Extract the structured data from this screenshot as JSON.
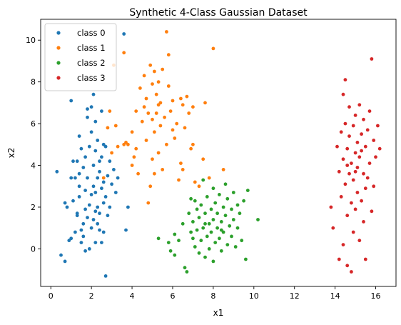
{
  "chart_data": {
    "type": "scatter",
    "title": "Synthetic 4-Class Gaussian Dataset",
    "xlabel": "x1",
    "ylabel": "x2",
    "xlim": [
      -0.5,
      17
    ],
    "ylim": [
      -1.8,
      11
    ],
    "xticks": [
      0,
      2,
      4,
      6,
      8,
      10,
      12,
      14,
      16
    ],
    "yticks": [
      0,
      2,
      4,
      6,
      8,
      10
    ],
    "grid": false,
    "legend_position": "top-left",
    "series": [
      {
        "name": "class 0",
        "color": "#1f77b4",
        "points": [
          [
            0.3,
            3.7
          ],
          [
            0.5,
            -0.3
          ],
          [
            0.7,
            -0.6
          ],
          [
            0.7,
            2.2
          ],
          [
            0.8,
            2.0
          ],
          [
            0.9,
            0.4
          ],
          [
            1.0,
            0.5
          ],
          [
            1.0,
            3.4
          ],
          [
            1.0,
            7.1
          ],
          [
            1.1,
            4.2
          ],
          [
            1.1,
            2.3
          ],
          [
            1.2,
            0.8
          ],
          [
            1.2,
            3.4
          ],
          [
            1.3,
            1.7
          ],
          [
            1.3,
            4.2
          ],
          [
            1.3,
            1.6
          ],
          [
            1.4,
            5.4
          ],
          [
            1.4,
            3.0
          ],
          [
            1.4,
            3.6
          ],
          [
            1.4,
            2.5
          ],
          [
            1.5,
            0.3
          ],
          [
            1.5,
            4.8
          ],
          [
            1.5,
            0.9
          ],
          [
            1.6,
            1.2
          ],
          [
            1.6,
            0.6
          ],
          [
            1.6,
            3.9
          ],
          [
            1.7,
            -0.1
          ],
          [
            1.7,
            2.8
          ],
          [
            1.7,
            1.9
          ],
          [
            1.7,
            4.4
          ],
          [
            1.8,
            6.3
          ],
          [
            1.8,
            6.7
          ],
          [
            1.8,
            1.5
          ],
          [
            1.8,
            3.4
          ],
          [
            1.9,
            2.1
          ],
          [
            1.9,
            0.0
          ],
          [
            1.9,
            4.9
          ],
          [
            2.0,
            6.8
          ],
          [
            2.0,
            2.6
          ],
          [
            2.0,
            1.0
          ],
          [
            2.0,
            5.6
          ],
          [
            2.1,
            7.4
          ],
          [
            2.1,
            3.0
          ],
          [
            2.1,
            4.0
          ],
          [
            2.1,
            1.4
          ],
          [
            2.2,
            2.7
          ],
          [
            2.2,
            0.3
          ],
          [
            2.2,
            6.1
          ],
          [
            2.2,
            4.7
          ],
          [
            2.3,
            2.0
          ],
          [
            2.3,
            1.2
          ],
          [
            2.3,
            3.4
          ],
          [
            2.3,
            5.2
          ],
          [
            2.4,
            0.9
          ],
          [
            2.4,
            4.2
          ],
          [
            2.4,
            1.7
          ],
          [
            2.4,
            3.7
          ],
          [
            2.5,
            6.6
          ],
          [
            2.5,
            2.9
          ],
          [
            2.5,
            4.4
          ],
          [
            2.5,
            0.3
          ],
          [
            2.6,
            2.2
          ],
          [
            2.6,
            5.0
          ],
          [
            2.6,
            0.8
          ],
          [
            2.6,
            3.2
          ],
          [
            2.7,
            -1.3
          ],
          [
            2.7,
            4.9
          ],
          [
            2.7,
            2.5
          ],
          [
            2.8,
            3.5
          ],
          [
            2.8,
            1.6
          ],
          [
            2.9,
            4.2
          ],
          [
            2.9,
            2.0
          ],
          [
            3.0,
            3.1
          ],
          [
            3.1,
            3.8
          ],
          [
            3.2,
            2.7
          ],
          [
            3.3,
            3.4
          ],
          [
            3.6,
            10.3
          ],
          [
            3.7,
            0.9
          ],
          [
            3.8,
            2.0
          ],
          [
            2.2,
            1.8
          ]
        ]
      },
      {
        "name": "class 1",
        "color": "#ff7f0e",
        "points": [
          [
            2.6,
            3.4
          ],
          [
            2.8,
            5.8
          ],
          [
            2.9,
            6.6
          ],
          [
            3.0,
            4.6
          ],
          [
            3.1,
            8.8
          ],
          [
            3.2,
            5.9
          ],
          [
            3.3,
            4.9
          ],
          [
            3.6,
            5.0
          ],
          [
            3.6,
            9.4
          ],
          [
            3.7,
            5.1
          ],
          [
            3.8,
            5.0
          ],
          [
            4.0,
            4.0
          ],
          [
            4.0,
            5.6
          ],
          [
            4.1,
            4.4
          ],
          [
            4.2,
            4.8
          ],
          [
            4.2,
            6.6
          ],
          [
            4.3,
            3.6
          ],
          [
            4.4,
            7.7
          ],
          [
            4.5,
            6.1
          ],
          [
            4.6,
            8.3
          ],
          [
            4.6,
            6.8
          ],
          [
            4.7,
            5.2
          ],
          [
            4.7,
            7.2
          ],
          [
            4.8,
            2.2
          ],
          [
            4.8,
            6.5
          ],
          [
            4.9,
            8.8
          ],
          [
            4.9,
            3.0
          ],
          [
            5.0,
            7.9
          ],
          [
            5.0,
            6.2
          ],
          [
            5.0,
            4.3
          ],
          [
            5.1,
            8.5
          ],
          [
            5.1,
            5.6
          ],
          [
            5.1,
            3.6
          ],
          [
            5.2,
            7.4
          ],
          [
            5.2,
            6.5
          ],
          [
            5.3,
            4.6
          ],
          [
            5.3,
            8.0
          ],
          [
            5.4,
            5.9
          ],
          [
            5.4,
            7.0
          ],
          [
            5.5,
            8.6
          ],
          [
            5.5,
            3.8
          ],
          [
            5.6,
            6.3
          ],
          [
            5.7,
            10.4
          ],
          [
            5.7,
            5.0
          ],
          [
            5.8,
            7.8
          ],
          [
            5.8,
            9.3
          ],
          [
            5.9,
            6.6
          ],
          [
            6.0,
            5.7
          ],
          [
            6.0,
            7.1
          ],
          [
            6.1,
            5.3
          ],
          [
            6.2,
            6.0
          ],
          [
            6.3,
            3.3
          ],
          [
            6.4,
            7.2
          ],
          [
            6.4,
            4.1
          ],
          [
            6.5,
            6.9
          ],
          [
            6.6,
            5.8
          ],
          [
            6.7,
            7.3
          ],
          [
            6.8,
            6.5
          ],
          [
            6.9,
            4.8
          ],
          [
            7.0,
            6.8
          ],
          [
            7.0,
            5.0
          ],
          [
            7.1,
            3.2
          ],
          [
            7.3,
            3.0
          ],
          [
            7.5,
            4.3
          ],
          [
            7.6,
            7.0
          ],
          [
            7.8,
            3.4
          ],
          [
            8.0,
            9.6
          ],
          [
            8.5,
            3.8
          ],
          [
            6.5,
            3.8
          ],
          [
            5.3,
            6.9
          ]
        ]
      },
      {
        "name": "class 2",
        "color": "#2ca02c",
        "points": [
          [
            5.3,
            0.5
          ],
          [
            5.8,
            0.3
          ],
          [
            5.9,
            -0.1
          ],
          [
            6.1,
            0.7
          ],
          [
            6.1,
            -0.3
          ],
          [
            6.3,
            0.4
          ],
          [
            6.5,
            1.2
          ],
          [
            6.6,
            -0.9
          ],
          [
            6.7,
            -1.1
          ],
          [
            6.8,
            1.7
          ],
          [
            6.9,
            0.8
          ],
          [
            6.9,
            2.4
          ],
          [
            7.0,
            0.5
          ],
          [
            7.0,
            1.3
          ],
          [
            7.1,
            0.1
          ],
          [
            7.2,
            1.9
          ],
          [
            7.2,
            0.9
          ],
          [
            7.3,
            -0.2
          ],
          [
            7.3,
            1.5
          ],
          [
            7.4,
            0.4
          ],
          [
            7.4,
            2.1
          ],
          [
            7.5,
            1.0
          ],
          [
            7.5,
            3.3
          ],
          [
            7.6,
            -0.4
          ],
          [
            7.6,
            1.7
          ],
          [
            7.7,
            0.6
          ],
          [
            7.7,
            2.5
          ],
          [
            7.8,
            1.2
          ],
          [
            7.8,
            0.0
          ],
          [
            7.9,
            1.9
          ],
          [
            7.9,
            0.8
          ],
          [
            8.0,
            2.9
          ],
          [
            8.0,
            -0.6
          ],
          [
            8.0,
            1.4
          ],
          [
            8.1,
            0.3
          ],
          [
            8.1,
            2.2
          ],
          [
            8.2,
            1.0
          ],
          [
            8.2,
            1.7
          ],
          [
            8.3,
            0.5
          ],
          [
            8.3,
            2.6
          ],
          [
            8.4,
            1.3
          ],
          [
            8.4,
            -0.1
          ],
          [
            8.5,
            2.0
          ],
          [
            8.5,
            0.8
          ],
          [
            8.6,
            1.6
          ],
          [
            8.6,
            3.1
          ],
          [
            8.7,
            0.2
          ],
          [
            8.7,
            2.4
          ],
          [
            8.8,
            1.1
          ],
          [
            8.9,
            1.9
          ],
          [
            8.9,
            0.6
          ],
          [
            9.0,
            2.7
          ],
          [
            9.0,
            1.4
          ],
          [
            9.1,
            0.1
          ],
          [
            9.2,
            2.1
          ],
          [
            9.2,
            1.0
          ],
          [
            9.3,
            1.7
          ],
          [
            9.4,
            0.4
          ],
          [
            9.5,
            2.3
          ],
          [
            9.6,
            -0.5
          ],
          [
            9.7,
            2.8
          ],
          [
            10.2,
            1.4
          ],
          [
            7.1,
            2.3
          ],
          [
            8.4,
            0.9
          ],
          [
            7.6,
            1.2
          ]
        ]
      },
      {
        "name": "class 3",
        "color": "#d62728",
        "points": [
          [
            13.8,
            2.0
          ],
          [
            13.9,
            1.0
          ],
          [
            14.1,
            4.9
          ],
          [
            14.2,
            3.7
          ],
          [
            14.2,
            -0.5
          ],
          [
            14.3,
            5.6
          ],
          [
            14.3,
            2.5
          ],
          [
            14.4,
            7.4
          ],
          [
            14.4,
            4.3
          ],
          [
            14.4,
            0.2
          ],
          [
            14.5,
            6.0
          ],
          [
            14.5,
            3.1
          ],
          [
            14.5,
            8.1
          ],
          [
            14.6,
            4.8
          ],
          [
            14.6,
            1.6
          ],
          [
            14.6,
            -0.8
          ],
          [
            14.7,
            5.4
          ],
          [
            14.7,
            3.6
          ],
          [
            14.7,
            6.8
          ],
          [
            14.8,
            2.2
          ],
          [
            14.8,
            4.1
          ],
          [
            14.8,
            -1.1
          ],
          [
            14.9,
            5.9
          ],
          [
            14.9,
            0.8
          ],
          [
            14.9,
            3.3
          ],
          [
            15.0,
            6.4
          ],
          [
            15.0,
            4.6
          ],
          [
            15.0,
            1.9
          ],
          [
            15.1,
            5.1
          ],
          [
            15.1,
            2.7
          ],
          [
            15.1,
            3.9
          ],
          [
            15.2,
            0.4
          ],
          [
            15.2,
            6.9
          ],
          [
            15.2,
            4.4
          ],
          [
            15.3,
            5.5
          ],
          [
            15.3,
            2.3
          ],
          [
            15.4,
            3.6
          ],
          [
            15.4,
            6.2
          ],
          [
            15.4,
            1.3
          ],
          [
            15.5,
            4.9
          ],
          [
            15.5,
            2.9
          ],
          [
            15.5,
            -0.5
          ],
          [
            15.6,
            5.7
          ],
          [
            15.6,
            3.4
          ],
          [
            15.7,
            6.6
          ],
          [
            15.7,
            4.1
          ],
          [
            15.8,
            1.8
          ],
          [
            15.8,
            9.1
          ],
          [
            15.9,
            5.2
          ],
          [
            15.9,
            3.0
          ],
          [
            16.0,
            4.4
          ],
          [
            16.1,
            5.9
          ],
          [
            16.2,
            4.8
          ],
          [
            14.6,
            4.0
          ],
          [
            15.0,
            3.7
          ],
          [
            15.3,
            4.7
          ]
        ]
      }
    ]
  }
}
